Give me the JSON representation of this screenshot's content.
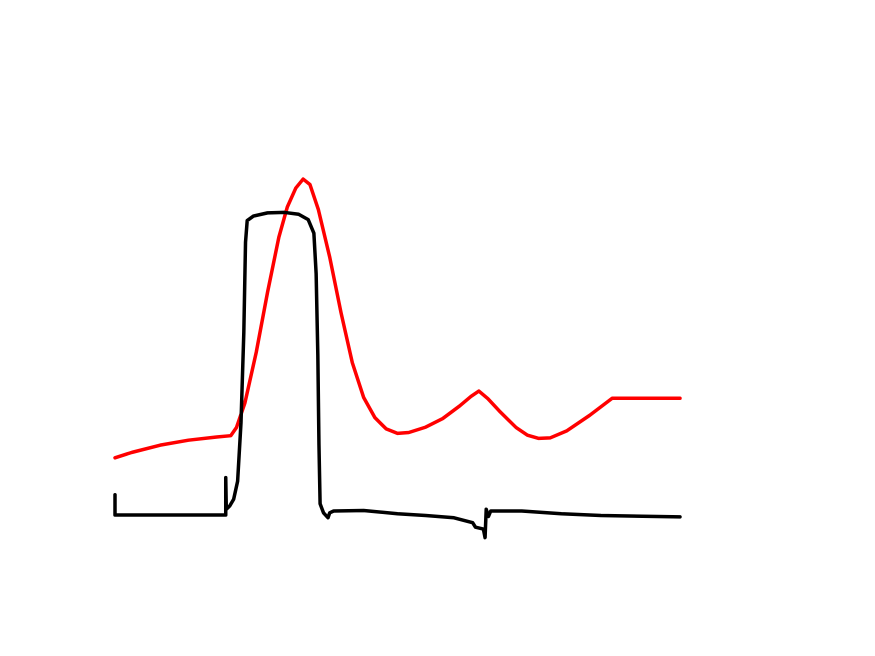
{
  "chart_data": {
    "type": "line",
    "title": "",
    "xlabel": "",
    "ylabel": "",
    "axes_visible": false,
    "grid": false,
    "legend": "none",
    "xlim": [
      0,
      100
    ],
    "ylim": [
      0,
      100
    ],
    "series": [
      {
        "id": "red-trace",
        "color": "#ff0000",
        "points": [
          [
            0,
            32.2
          ],
          [
            3,
            33.4
          ],
          [
            8,
            35.0
          ],
          [
            13,
            36.1
          ],
          [
            18,
            36.8
          ],
          [
            20.5,
            37.1
          ],
          [
            21.5,
            38.9
          ],
          [
            23,
            44.4
          ],
          [
            25,
            55.6
          ],
          [
            27,
            68.9
          ],
          [
            29,
            81.1
          ],
          [
            30.5,
            87.8
          ],
          [
            32,
            92.0
          ],
          [
            33.3,
            94.0
          ],
          [
            34.5,
            92.8
          ],
          [
            36,
            87.2
          ],
          [
            38,
            76.7
          ],
          [
            40,
            64.4
          ],
          [
            42,
            53.3
          ],
          [
            44,
            45.6
          ],
          [
            46,
            41.1
          ],
          [
            48,
            38.6
          ],
          [
            50,
            37.6
          ],
          [
            52,
            37.8
          ],
          [
            55,
            39.0
          ],
          [
            58,
            40.9
          ],
          [
            61,
            43.7
          ],
          [
            63,
            45.8
          ],
          [
            64.4,
            47.0
          ],
          [
            66,
            45.3
          ],
          [
            68,
            42.6
          ],
          [
            71,
            38.9
          ],
          [
            73,
            37.2
          ],
          [
            75,
            36.5
          ],
          [
            77,
            36.6
          ],
          [
            80,
            38.2
          ],
          [
            84,
            41.6
          ],
          [
            88,
            45.4
          ],
          [
            100,
            45.4
          ]
        ]
      },
      {
        "id": "black-trace",
        "color": "#000000",
        "points": [
          [
            0,
            24.0
          ],
          [
            0,
            19.5
          ],
          [
            19.6,
            19.5
          ],
          [
            19.6,
            27.8
          ],
          [
            19.7,
            20.8
          ],
          [
            20.3,
            21.5
          ],
          [
            21,
            23.0
          ],
          [
            21.7,
            27.0
          ],
          [
            22.3,
            40.0
          ],
          [
            22.8,
            60.0
          ],
          [
            23.1,
            80.0
          ],
          [
            23.4,
            84.8
          ],
          [
            24.5,
            85.8
          ],
          [
            27,
            86.5
          ],
          [
            30,
            86.6
          ],
          [
            32.5,
            86.2
          ],
          [
            34.2,
            85.0
          ],
          [
            35.2,
            82.0
          ],
          [
            35.6,
            73.0
          ],
          [
            35.9,
            55.0
          ],
          [
            36.1,
            35.0
          ],
          [
            36.3,
            22.0
          ],
          [
            36.9,
            20.0
          ],
          [
            37.7,
            18.9
          ],
          [
            38,
            20.0
          ],
          [
            38.7,
            20.4
          ],
          [
            44,
            20.5
          ],
          [
            50,
            19.8
          ],
          [
            55,
            19.4
          ],
          [
            60,
            18.9
          ],
          [
            63.3,
            17.8
          ],
          [
            63.8,
            16.8
          ],
          [
            65.2,
            16.4
          ],
          [
            65.5,
            14.5
          ],
          [
            65.7,
            20.8
          ],
          [
            66.1,
            19.2
          ],
          [
            66.5,
            20.4
          ],
          [
            72,
            20.4
          ],
          [
            79,
            19.8
          ],
          [
            86,
            19.4
          ],
          [
            100,
            19.1
          ]
        ]
      }
    ]
  }
}
